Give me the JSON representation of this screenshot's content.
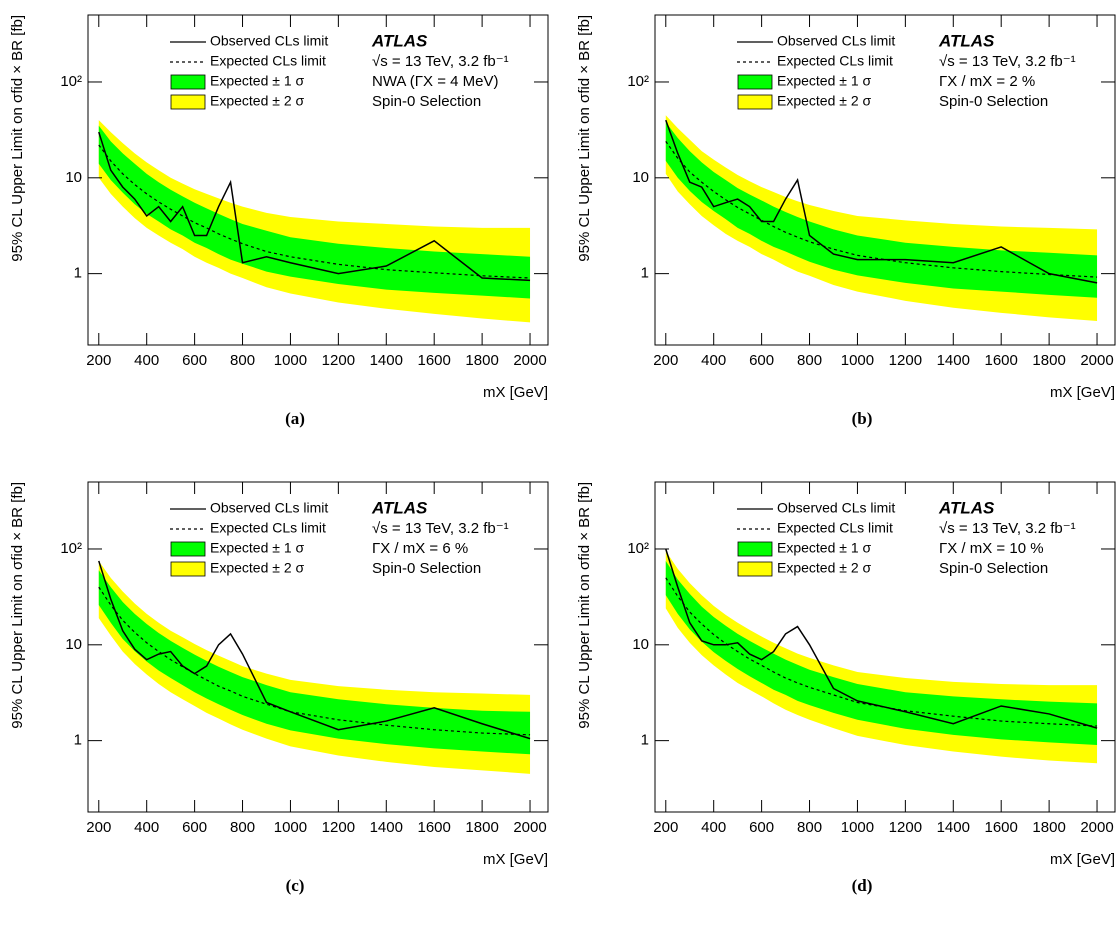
{
  "chart_data": [
    {
      "type": "line",
      "caption": "(a)",
      "xlabel": "mX [GeV]",
      "ylabel": "95% CL Upper Limit on σfid × BR [fb]",
      "annotations": [
        "ATLAS",
        "√s = 13 TeV, 3.2 fb⁻¹",
        "NWA (ΓX = 4 MeV)",
        "Spin-0 Selection"
      ],
      "log_y": true,
      "xlim": [
        155,
        2075
      ],
      "ylim": [
        0.18,
        500
      ],
      "xticks": [
        200,
        400,
        600,
        800,
        1000,
        1200,
        1400,
        1600,
        1800,
        2000
      ],
      "yticks": [
        1,
        10,
        {
          "value": 100,
          "label": "10²"
        }
      ],
      "x": [
        200,
        250,
        300,
        350,
        400,
        450,
        500,
        550,
        600,
        650,
        700,
        750,
        800,
        900,
        1000,
        1200,
        1400,
        1600,
        1800,
        2000
      ],
      "series": [
        {
          "name": "Observed CLs limit",
          "color": "#000000",
          "style": "solid",
          "values": [
            30,
            12,
            8,
            6,
            4,
            5,
            3.5,
            5,
            2.5,
            2.5,
            5,
            9,
            1.3,
            1.5,
            1.3,
            1.0,
            1.2,
            2.2,
            0.9,
            0.85
          ]
        },
        {
          "name": "Expected CLs limit",
          "color": "#000000",
          "style": "dashed",
          "values": [
            22,
            15,
            11,
            8.5,
            6.8,
            5.6,
            4.7,
            4.0,
            3.4,
            3.0,
            2.6,
            2.3,
            2.05,
            1.7,
            1.5,
            1.25,
            1.1,
            1.02,
            0.95,
            0.9
          ]
        }
      ],
      "bands": [
        {
          "name": "Expected ± 1 σ",
          "color": "#00ff00",
          "lower": [
            14,
            9.5,
            7,
            5.3,
            4.2,
            3.5,
            2.9,
            2.5,
            2.1,
            1.85,
            1.6,
            1.4,
            1.27,
            1.05,
            0.93,
            0.78,
            0.68,
            0.63,
            0.59,
            0.55
          ],
          "upper": [
            35,
            24,
            18,
            14,
            11,
            9,
            7.5,
            6.4,
            5.5,
            4.8,
            4.2,
            3.7,
            3.3,
            2.8,
            2.4,
            2.05,
            1.85,
            1.7,
            1.6,
            1.5
          ]
        },
        {
          "name": "Expected ± 2 σ",
          "color": "#ffff00",
          "lower": [
            10,
            6.8,
            5.0,
            3.8,
            3.0,
            2.5,
            2.1,
            1.8,
            1.5,
            1.3,
            1.15,
            1.0,
            0.9,
            0.72,
            0.62,
            0.5,
            0.43,
            0.38,
            0.34,
            0.31
          ],
          "upper": [
            40,
            30,
            23,
            18,
            14.5,
            12,
            10,
            8.7,
            7.6,
            6.8,
            6.1,
            5.5,
            5.0,
            4.3,
            3.9,
            3.5,
            3.3,
            3.1,
            3.0,
            3.0
          ]
        }
      ]
    },
    {
      "type": "line",
      "caption": "(b)",
      "xlabel": "mX [GeV]",
      "ylabel": "95% CL Upper Limit on σfid × BR [fb]",
      "annotations": [
        "ATLAS",
        "√s = 13 TeV, 3.2 fb⁻¹",
        "ΓX / mX = 2 %",
        "Spin-0 Selection"
      ],
      "log_y": true,
      "xlim": [
        155,
        2075
      ],
      "ylim": [
        0.18,
        500
      ],
      "xticks": [
        200,
        400,
        600,
        800,
        1000,
        1200,
        1400,
        1600,
        1800,
        2000
      ],
      "yticks": [
        1,
        10,
        {
          "value": 100,
          "label": "10²"
        }
      ],
      "x": [
        200,
        250,
        300,
        350,
        400,
        450,
        500,
        550,
        600,
        650,
        700,
        750,
        800,
        900,
        1000,
        1200,
        1400,
        1600,
        1800,
        2000
      ],
      "series": [
        {
          "name": "Observed CLs limit",
          "color": "#000000",
          "style": "solid",
          "values": [
            40,
            18,
            9,
            8,
            5,
            5.5,
            6,
            5,
            3.5,
            3.5,
            6,
            9.5,
            2.5,
            1.6,
            1.4,
            1.4,
            1.3,
            1.9,
            1.0,
            0.8
          ]
        },
        {
          "name": "Expected CLs limit",
          "color": "#000000",
          "style": "dashed",
          "values": [
            24,
            16,
            11.5,
            9,
            7.2,
            5.9,
            4.9,
            4.2,
            3.6,
            3.1,
            2.7,
            2.4,
            2.15,
            1.8,
            1.55,
            1.3,
            1.15,
            1.05,
            0.98,
            0.92
          ]
        }
      ],
      "bands": [
        {
          "name": "Expected ± 1 σ",
          "color": "#00ff00",
          "lower": [
            15,
            10,
            7.3,
            5.6,
            4.5,
            3.7,
            3.0,
            2.6,
            2.2,
            1.9,
            1.7,
            1.5,
            1.33,
            1.1,
            0.96,
            0.8,
            0.7,
            0.65,
            0.6,
            0.56
          ],
          "upper": [
            38,
            26,
            19,
            14.5,
            11.5,
            9.5,
            7.8,
            6.7,
            5.8,
            5.0,
            4.4,
            3.9,
            3.5,
            2.9,
            2.5,
            2.1,
            1.9,
            1.75,
            1.65,
            1.55
          ]
        },
        {
          "name": "Expected ± 2 σ",
          "color": "#ffff00",
          "lower": [
            11,
            7.2,
            5.3,
            4,
            3.2,
            2.6,
            2.2,
            1.9,
            1.6,
            1.4,
            1.2,
            1.05,
            0.95,
            0.76,
            0.65,
            0.52,
            0.44,
            0.39,
            0.35,
            0.32
          ],
          "upper": [
            45,
            33,
            25,
            19,
            15.5,
            12.8,
            10.7,
            9.2,
            8,
            7.1,
            6.3,
            5.7,
            5.2,
            4.5,
            4,
            3.6,
            3.3,
            3.1,
            3.0,
            2.9
          ]
        }
      ]
    },
    {
      "type": "line",
      "caption": "(c)",
      "xlabel": "mX [GeV]",
      "ylabel": "95% CL Upper Limit on σfid × BR [fb]",
      "annotations": [
        "ATLAS",
        "√s = 13 TeV, 3.2 fb⁻¹",
        "ΓX / mX = 6 %",
        "Spin-0 Selection"
      ],
      "log_y": true,
      "xlim": [
        155,
        2075
      ],
      "ylim": [
        0.18,
        500
      ],
      "xticks": [
        200,
        400,
        600,
        800,
        1000,
        1200,
        1400,
        1600,
        1800,
        2000
      ],
      "yticks": [
        1,
        10,
        {
          "value": 100,
          "label": "10²"
        }
      ],
      "x": [
        200,
        250,
        300,
        350,
        400,
        450,
        500,
        550,
        600,
        650,
        700,
        750,
        800,
        900,
        1000,
        1200,
        1400,
        1600,
        1800,
        2000
      ],
      "series": [
        {
          "name": "Observed CLs limit",
          "color": "#000000",
          "style": "solid",
          "values": [
            75,
            30,
            14,
            9,
            7,
            8,
            8.5,
            6,
            5,
            6,
            10,
            13,
            8,
            2.5,
            2.0,
            1.3,
            1.6,
            2.2,
            1.5,
            1.05
          ]
        },
        {
          "name": "Expected CLs limit",
          "color": "#000000",
          "style": "dashed",
          "values": [
            40,
            26,
            18,
            13.5,
            10.5,
            8.5,
            7,
            5.9,
            5,
            4.3,
            3.7,
            3.3,
            2.9,
            2.4,
            2.0,
            1.65,
            1.45,
            1.3,
            1.2,
            1.15
          ]
        }
      ],
      "bands": [
        {
          "name": "Expected ± 1 σ",
          "color": "#00ff00",
          "lower": [
            26,
            17,
            11.5,
            8.6,
            6.7,
            5.4,
            4.5,
            3.8,
            3.2,
            2.75,
            2.4,
            2.1,
            1.85,
            1.5,
            1.28,
            1.05,
            0.92,
            0.83,
            0.77,
            0.72
          ],
          "upper": [
            60,
            40,
            28,
            21,
            16.5,
            13.3,
            11,
            9.3,
            7.9,
            6.8,
            5.9,
            5.2,
            4.6,
            3.8,
            3.2,
            2.7,
            2.4,
            2.2,
            2.05,
            2.0
          ]
        },
        {
          "name": "Expected ± 2 σ",
          "color": "#ffff00",
          "lower": [
            19,
            12.5,
            8.5,
            6.3,
            4.9,
            3.9,
            3.2,
            2.7,
            2.3,
            1.95,
            1.7,
            1.48,
            1.3,
            1.05,
            0.87,
            0.7,
            0.6,
            0.53,
            0.49,
            0.45
          ],
          "upper": [
            75,
            50,
            36,
            27,
            21,
            17,
            14,
            12,
            10.2,
            8.8,
            7.7,
            6.8,
            6.0,
            5.0,
            4.3,
            3.7,
            3.4,
            3.2,
            3.1,
            3.0
          ]
        }
      ]
    },
    {
      "type": "line",
      "caption": "(d)",
      "xlabel": "mX [GeV]",
      "ylabel": "95% CL Upper Limit on σfid × BR [fb]",
      "annotations": [
        "ATLAS",
        "√s = 13 TeV, 3.2 fb⁻¹",
        "ΓX / mX = 10 %",
        "Spin-0 Selection"
      ],
      "log_y": true,
      "xlim": [
        155,
        2075
      ],
      "ylim": [
        0.18,
        500
      ],
      "xticks": [
        200,
        400,
        600,
        800,
        1000,
        1200,
        1400,
        1600,
        1800,
        2000
      ],
      "yticks": [
        1,
        10,
        {
          "value": 100,
          "label": "10²"
        }
      ],
      "x": [
        200,
        250,
        300,
        350,
        400,
        450,
        500,
        550,
        600,
        650,
        700,
        750,
        800,
        900,
        1000,
        1200,
        1400,
        1600,
        1800,
        2000
      ],
      "series": [
        {
          "name": "Observed CLs limit",
          "color": "#000000",
          "style": "solid",
          "values": [
            100,
            40,
            17,
            11,
            10,
            10,
            10.5,
            8,
            7,
            8.5,
            13,
            15.5,
            10,
            3.5,
            2.6,
            2.0,
            1.5,
            2.3,
            1.9,
            1.35
          ]
        },
        {
          "name": "Expected CLs limit",
          "color": "#000000",
          "style": "dashed",
          "values": [
            50,
            32,
            22,
            16.5,
            12.8,
            10.3,
            8.5,
            7.1,
            6.1,
            5.2,
            4.5,
            4,
            3.6,
            3,
            2.5,
            2.05,
            1.8,
            1.6,
            1.5,
            1.42
          ]
        }
      ],
      "bands": [
        {
          "name": "Expected ± 1 σ",
          "color": "#00ff00",
          "lower": [
            33,
            21,
            14.5,
            10.8,
            8.4,
            6.8,
            5.6,
            4.7,
            4.0,
            3.4,
            3.0,
            2.6,
            2.35,
            1.95,
            1.65,
            1.33,
            1.15,
            1.03,
            0.96,
            0.9
          ],
          "upper": [
            75,
            48,
            34,
            25,
            19.5,
            15.8,
            13,
            11,
            9.4,
            8.1,
            7,
            6.2,
            5.5,
            4.6,
            3.9,
            3.2,
            2.9,
            2.7,
            2.55,
            2.45
          ]
        },
        {
          "name": "Expected ± 2 σ",
          "color": "#ffff00",
          "lower": [
            24,
            15,
            10.5,
            7.8,
            6.1,
            4.9,
            4.0,
            3.4,
            2.9,
            2.45,
            2.1,
            1.85,
            1.65,
            1.35,
            1.12,
            0.9,
            0.77,
            0.68,
            0.62,
            0.58
          ],
          "upper": [
            95,
            62,
            44,
            33,
            25.5,
            20.5,
            17,
            14.3,
            12.2,
            10.5,
            9.2,
            8.1,
            7.3,
            6.1,
            5.2,
            4.5,
            4.1,
            3.9,
            3.8,
            3.8
          ]
        }
      ]
    }
  ]
}
